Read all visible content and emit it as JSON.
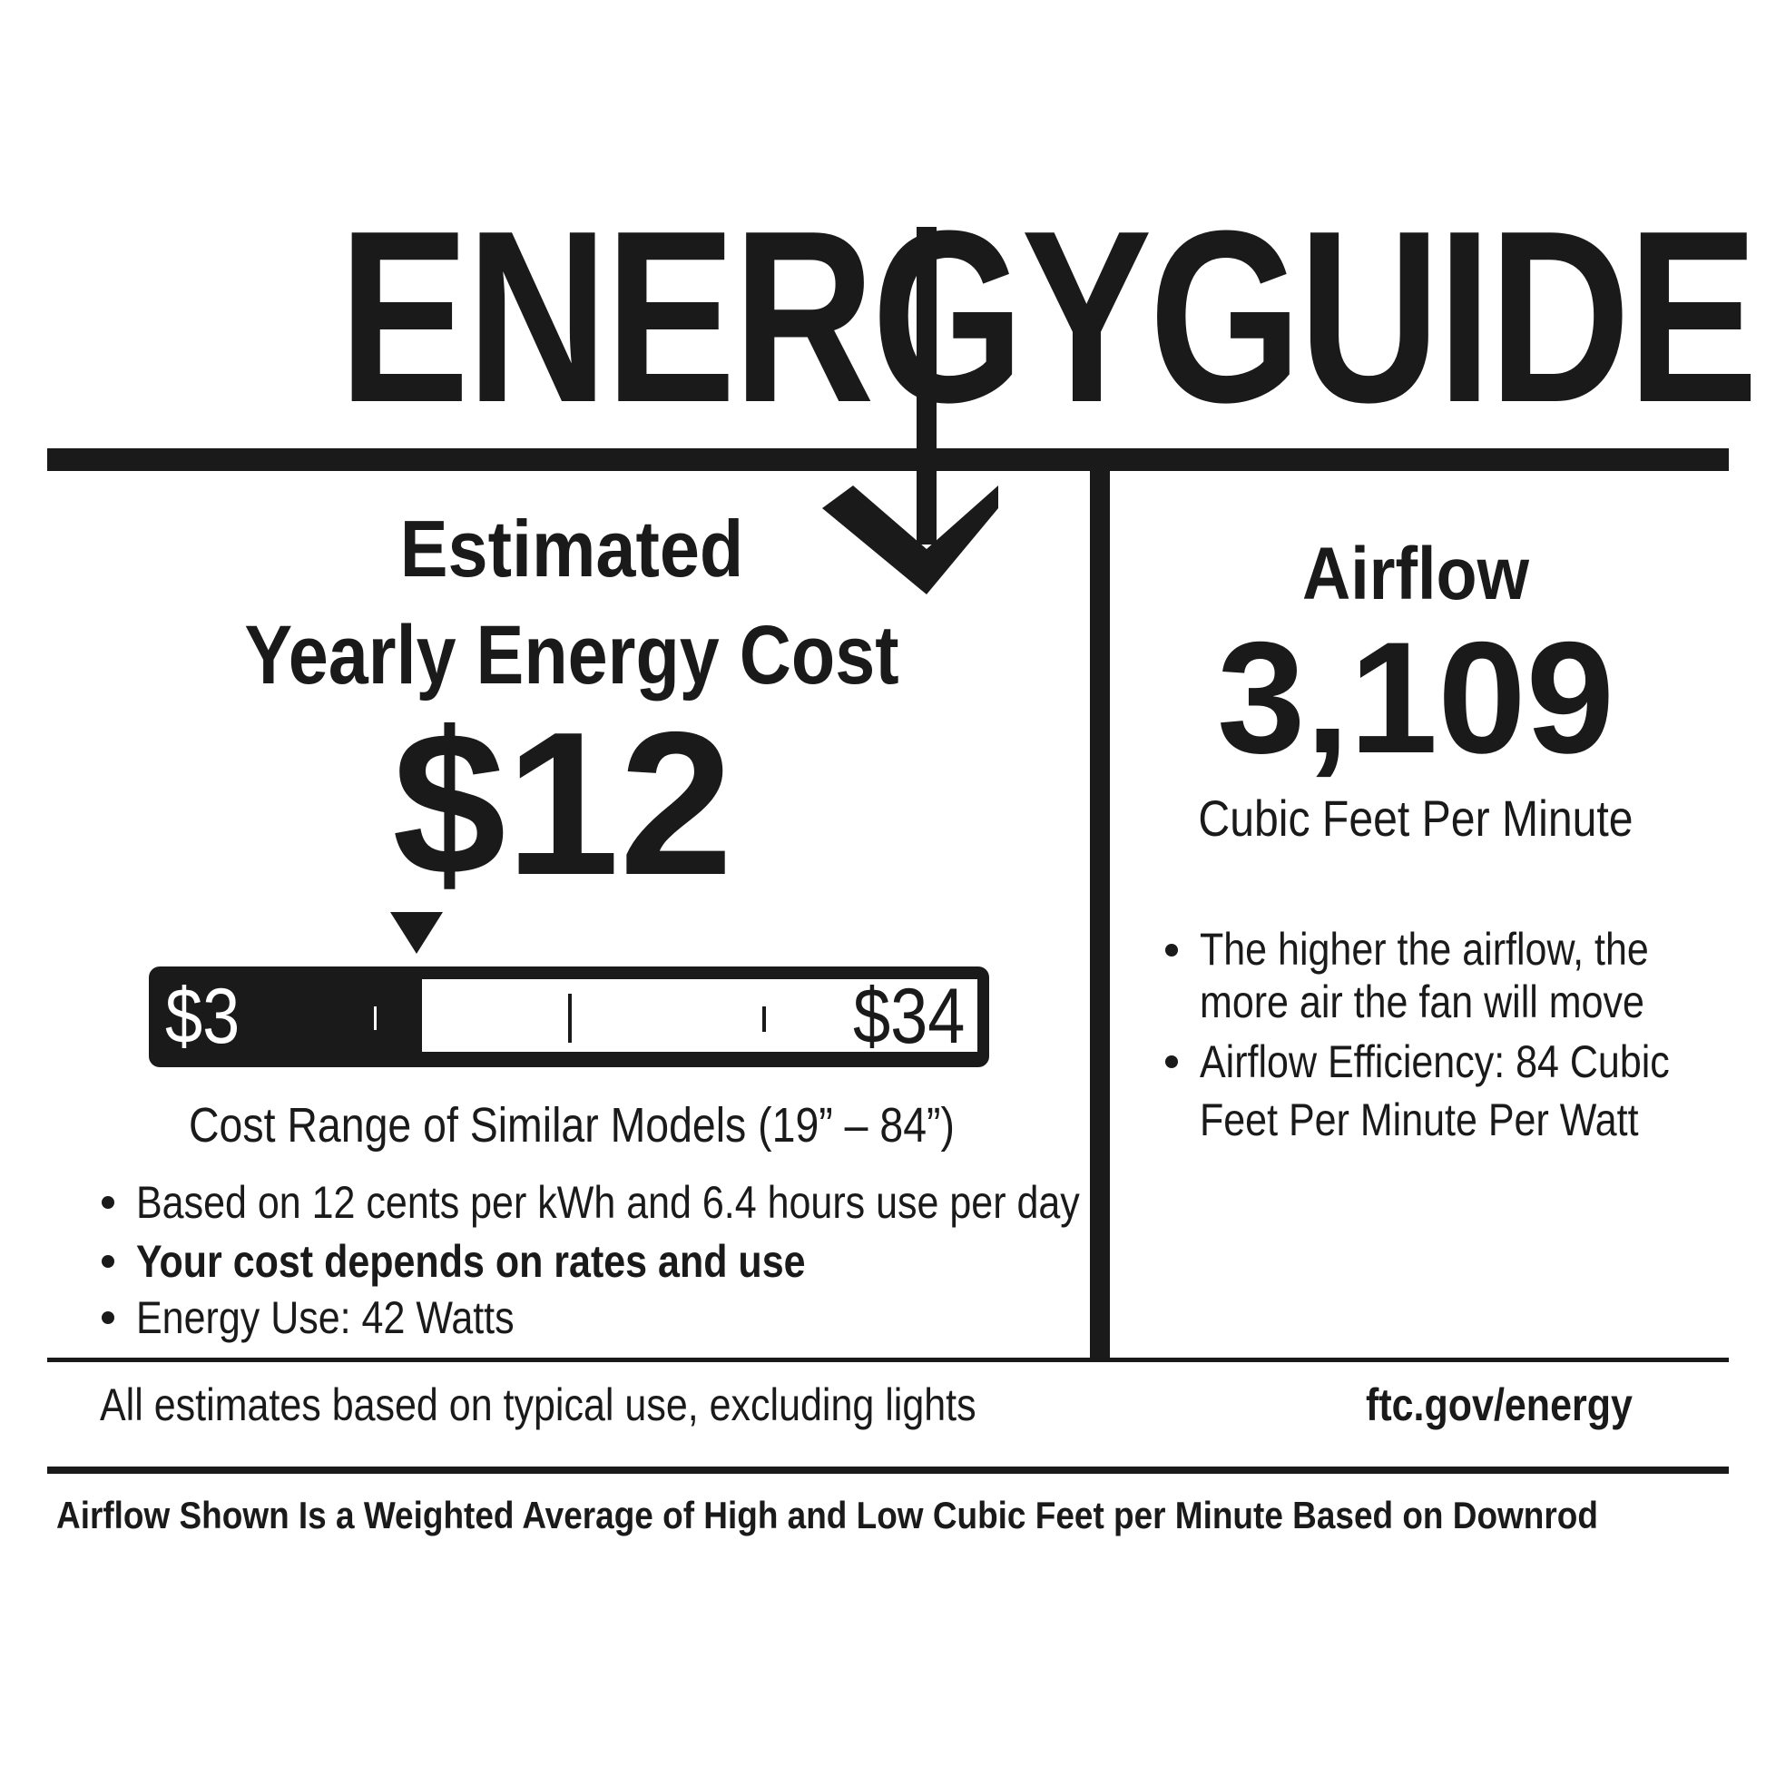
{
  "title": "ENERGYGUIDE",
  "cost": {
    "heading_line1": "Estimated",
    "heading_line2": "Yearly Energy Cost",
    "value": "$12",
    "range_min": "$3",
    "range_max": "$34",
    "marker_fraction": 0.29,
    "range_caption": "Cost Range of Similar Models (19” – 84”)",
    "bullets": [
      "Based on 12 cents per kWh and 6.4 hours use per day",
      "Your cost depends on rates and use",
      "Energy Use: 42 Watts"
    ]
  },
  "airflow": {
    "heading": "Airflow",
    "value": "3,109",
    "unit": "Cubic Feet Per Minute",
    "bullets": [
      [
        "The higher the airflow, the",
        "more air the fan will move"
      ],
      [
        "Airflow Efficiency: 84  Cubic",
        "Feet Per Minute Per Watt"
      ]
    ]
  },
  "footer": {
    "note": "All estimates based on typical use, excluding lights",
    "link": "ftc.gov/energy",
    "disclaimer": "Airflow Shown Is a Weighted Average of High and Low Cubic Feet per Minute Based on Downrod"
  },
  "colors": {
    "ink": "#1a1a1a",
    "background": "#ffffff"
  }
}
